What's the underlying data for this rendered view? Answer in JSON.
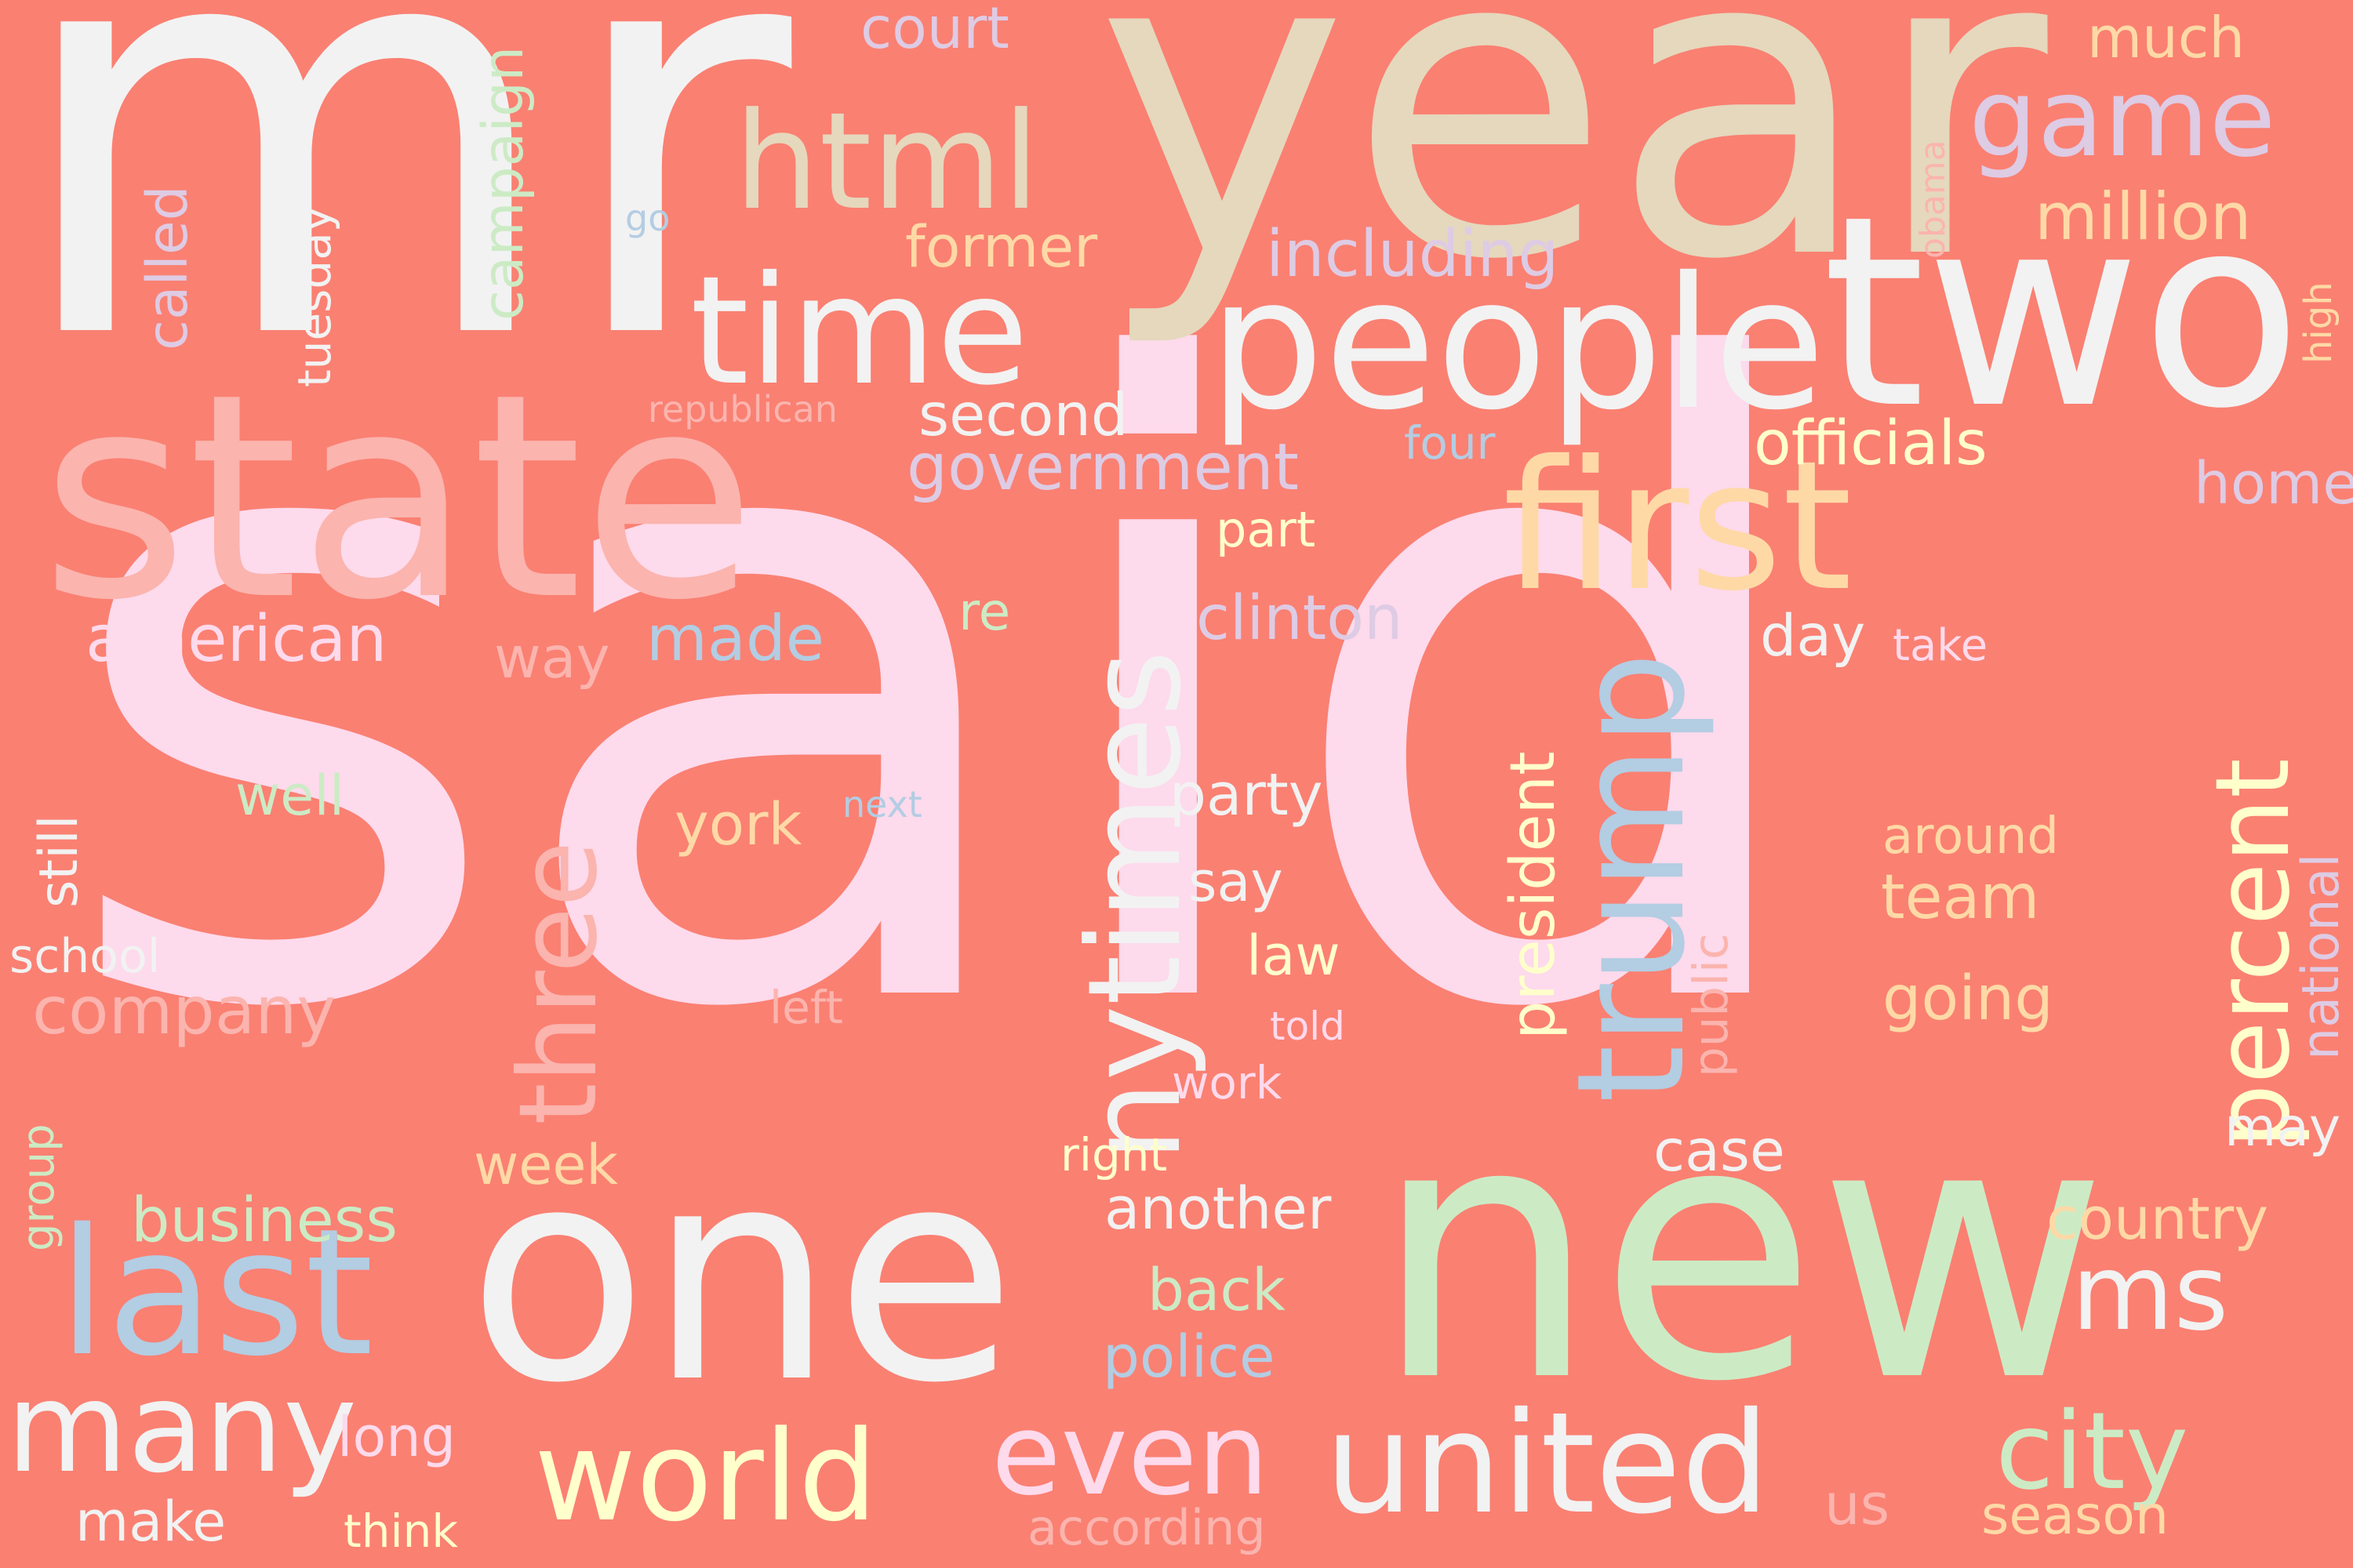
{
  "canvas": {
    "background": "#fa8072"
  },
  "palette": {
    "white": "#f2f2f2",
    "pink": "#fddaec",
    "tan": "#e5d8bd",
    "rose": "#fbb4ae",
    "peach": "#fed9a6",
    "yellow": "#ffffcc",
    "green": "#ccebc5",
    "blue": "#b3cde3",
    "lavender": "#decbe4"
  },
  "words": [
    {
      "text": "said",
      "color": "pink",
      "rank": 1
    },
    {
      "text": "mr",
      "color": "white",
      "rank": 2
    },
    {
      "text": "year",
      "color": "tan",
      "rank": 3
    },
    {
      "text": "new",
      "color": "green",
      "rank": 4
    },
    {
      "text": "one",
      "color": "white",
      "rank": 5
    },
    {
      "text": "state",
      "color": "rose",
      "rank": 6
    },
    {
      "text": "two",
      "color": "white",
      "rank": 7
    },
    {
      "text": "people",
      "color": "white",
      "rank": 8
    },
    {
      "text": "first",
      "color": "peach",
      "rank": 9
    },
    {
      "text": "last",
      "color": "blue",
      "rank": 10
    },
    {
      "text": "trump",
      "color": "blue",
      "rank": 11
    },
    {
      "text": "time",
      "color": "white",
      "rank": 12
    },
    {
      "text": "united",
      "color": "white",
      "rank": 13
    },
    {
      "text": "nytimes",
      "color": "white",
      "rank": 14
    },
    {
      "text": "world",
      "color": "yellow",
      "rank": 15
    },
    {
      "text": "many",
      "color": "white",
      "rank": 16
    },
    {
      "text": "html",
      "color": "tan",
      "rank": 17
    },
    {
      "text": "even",
      "color": "pink",
      "rank": 18
    },
    {
      "text": "three",
      "color": "rose",
      "rank": 19
    },
    {
      "text": "percent",
      "color": "yellow",
      "rank": 20
    },
    {
      "text": "city",
      "color": "green",
      "rank": 21
    },
    {
      "text": "game",
      "color": "lavender",
      "rank": 22
    },
    {
      "text": "ms",
      "color": "white",
      "rank": 23
    },
    {
      "text": "government",
      "color": "lavender",
      "rank": 24
    },
    {
      "text": "company",
      "color": "rose",
      "rank": 25
    },
    {
      "text": "american",
      "color": "pink",
      "rank": 26
    },
    {
      "text": "million",
      "color": "peach",
      "rank": 27
    },
    {
      "text": "including",
      "color": "lavender",
      "rank": 28
    },
    {
      "text": "officials",
      "color": "yellow",
      "rank": 29
    },
    {
      "text": "clinton",
      "color": "lavender",
      "rank": 30
    },
    {
      "text": "president",
      "color": "yellow",
      "rank": 31
    },
    {
      "text": "business",
      "color": "green",
      "rank": 32
    },
    {
      "text": "second",
      "color": "white",
      "rank": 33
    },
    {
      "text": "another",
      "color": "white",
      "rank": 34
    },
    {
      "text": "police",
      "color": "blue",
      "rank": 35
    },
    {
      "text": "back",
      "color": "green",
      "rank": 36
    },
    {
      "text": "party",
      "color": "white",
      "rank": 37
    },
    {
      "text": "made",
      "color": "blue",
      "rank": 38
    },
    {
      "text": "former",
      "color": "peach",
      "rank": 39
    },
    {
      "text": "country",
      "color": "peach",
      "rank": 40
    },
    {
      "text": "campaign",
      "color": "green",
      "rank": 41
    },
    {
      "text": "going",
      "color": "peach",
      "rank": 42
    },
    {
      "text": "team",
      "color": "peach",
      "rank": 43
    },
    {
      "text": "home",
      "color": "lavender",
      "rank": 44
    },
    {
      "text": "york",
      "color": "peach",
      "rank": 45
    },
    {
      "text": "case",
      "color": "white",
      "rank": 46
    },
    {
      "text": "court",
      "color": "lavender",
      "rank": 47
    },
    {
      "text": "much",
      "color": "peach",
      "rank": 48
    },
    {
      "text": "called",
      "color": "lavender",
      "rank": 49
    },
    {
      "text": "way",
      "color": "rose",
      "rank": 50
    },
    {
      "text": "day",
      "color": "white",
      "rank": 51
    },
    {
      "text": "season",
      "color": "peach",
      "rank": 52
    },
    {
      "text": "national",
      "color": "lavender",
      "rank": 53
    },
    {
      "text": "may",
      "color": "white",
      "rank": 54
    },
    {
      "text": "well",
      "color": "green",
      "rank": 55
    },
    {
      "text": "say",
      "color": "white",
      "rank": 56
    },
    {
      "text": "law",
      "color": "yellow",
      "rank": 57
    },
    {
      "text": "long",
      "color": "pink",
      "rank": 58
    },
    {
      "text": "week",
      "color": "peach",
      "rank": 59
    },
    {
      "text": "make",
      "color": "white",
      "rank": 60
    },
    {
      "text": "still",
      "color": "white",
      "rank": 61
    },
    {
      "text": "around",
      "color": "peach",
      "rank": 62
    },
    {
      "text": "part",
      "color": "yellow",
      "rank": 63
    },
    {
      "text": "according",
      "color": "rose",
      "rank": 64
    },
    {
      "text": "school",
      "color": "white",
      "rank": 65
    },
    {
      "text": "us",
      "color": "rose",
      "rank": 66
    },
    {
      "text": "tuesday",
      "color": "white",
      "rank": 67
    },
    {
      "text": "public",
      "color": "rose",
      "rank": 68
    },
    {
      "text": "work",
      "color": "pink",
      "rank": 69
    },
    {
      "text": "re",
      "color": "green",
      "rank": 70
    },
    {
      "text": "think",
      "color": "yellow",
      "rank": 71
    },
    {
      "text": "four",
      "color": "blue",
      "rank": 72
    },
    {
      "text": "right",
      "color": "yellow",
      "rank": 73
    },
    {
      "text": "take",
      "color": "pink",
      "rank": 74
    },
    {
      "text": "group",
      "color": "green",
      "rank": 75
    },
    {
      "text": "left",
      "color": "rose",
      "rank": 76
    },
    {
      "text": "told",
      "color": "pink",
      "rank": 77
    },
    {
      "text": "republican",
      "color": "rose",
      "rank": 78
    },
    {
      "text": "next",
      "color": "blue",
      "rank": 79
    },
    {
      "text": "high",
      "color": "peach",
      "rank": 80
    },
    {
      "text": "obama",
      "color": "rose",
      "rank": 81
    },
    {
      "text": "go",
      "color": "blue",
      "rank": 82
    }
  ]
}
